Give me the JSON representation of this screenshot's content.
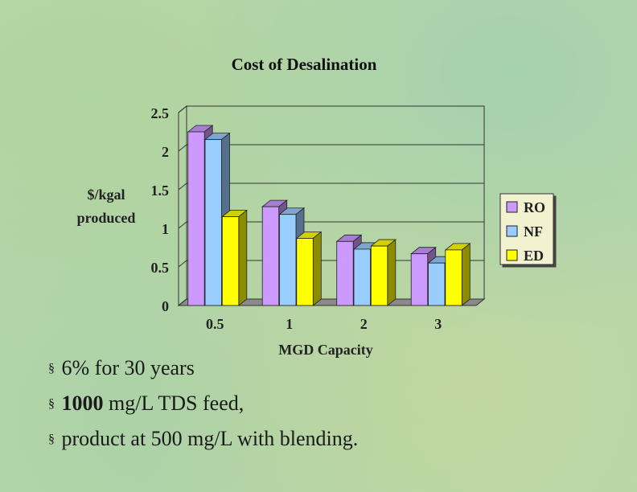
{
  "chart_data": {
    "type": "bar",
    "title": "Cost of Desalination",
    "xlabel": "MGD Capacity",
    "ylabel": [
      "$/kgal",
      "produced"
    ],
    "categories": [
      "0.5",
      "1",
      "2",
      "3"
    ],
    "series": [
      {
        "name": "RO",
        "color": "#cc99ff",
        "values": [
          2.25,
          1.28,
          0.83,
          0.67
        ]
      },
      {
        "name": "NF",
        "color": "#99ccff",
        "values": [
          2.15,
          1.18,
          0.73,
          0.55
        ]
      },
      {
        "name": "ED",
        "color": "#ffff00",
        "values": [
          1.15,
          0.87,
          0.77,
          0.72
        ]
      }
    ],
    "ylim": [
      0,
      2.5
    ],
    "yticks": [
      "0",
      "0.5",
      "1",
      "1.5",
      "2",
      "2.5"
    ],
    "grid": true,
    "legend_position": "right"
  },
  "bullets": [
    {
      "text": "6% for 30 years"
    },
    {
      "bold": "1000",
      "text": " mg/L TDS feed,"
    },
    {
      "text": "product at 500 mg/L with blending."
    }
  ],
  "bullet_marker": "§"
}
